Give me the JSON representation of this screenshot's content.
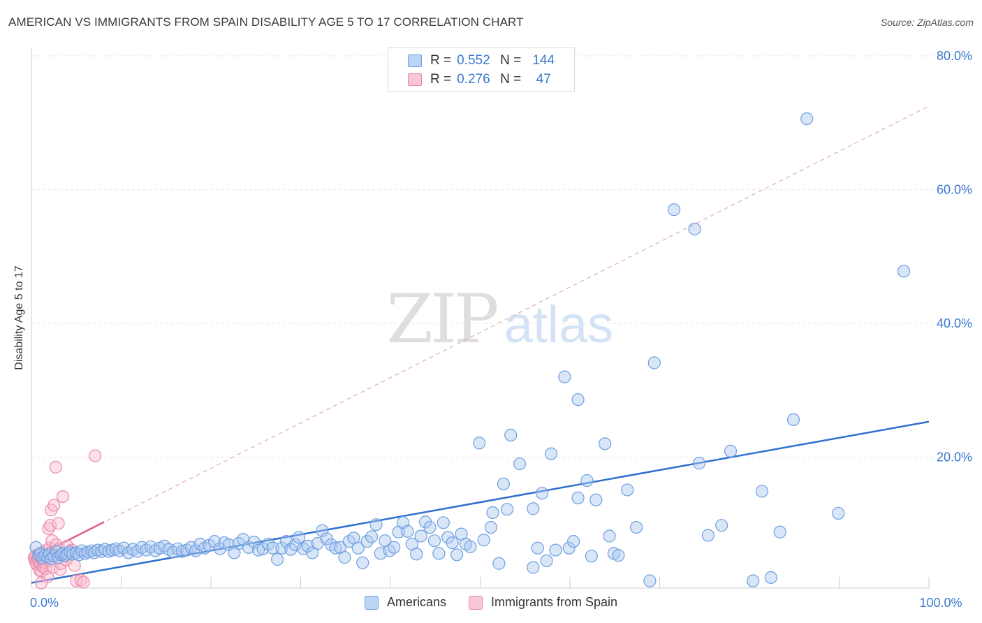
{
  "title": "AMERICAN VS IMMIGRANTS FROM SPAIN DISABILITY AGE 5 TO 17 CORRELATION CHART",
  "source": "Source: ZipAtlas.com",
  "watermark": {
    "zip": "ZIP",
    "atlas": "atlas"
  },
  "legend": [
    {
      "name": "Americans",
      "r_label": "R =",
      "r": "0.552",
      "n_label": "N =",
      "n": "144",
      "fill": "#a9c8f0",
      "stroke": "#6f9fe0"
    },
    {
      "name": "Immigrants from Spain",
      "r_label": "R =",
      "r": "0.276",
      "n_label": "N =",
      "n": "47",
      "fill": "#f8bdd0",
      "stroke": "#ec88a8"
    }
  ],
  "colors": {
    "blue_line": "#2f6fcf",
    "pink_line": "#e0608a",
    "axis_text": "#3b78d0",
    "grid": "#e4e4e4"
  },
  "chart_data": {
    "type": "scatter",
    "title": "AMERICAN VS IMMIGRANTS FROM SPAIN DISABILITY AGE 5 TO 17 CORRELATION CHART",
    "xlabel": "",
    "ylabel": "Disability Age 5 to 17",
    "xlim": [
      0,
      100
    ],
    "ylim": [
      0,
      80
    ],
    "x_tick_labels": [
      {
        "value": 0,
        "label": "0.0%"
      },
      {
        "value": 100,
        "label": "100.0%"
      }
    ],
    "y_tick_labels": [
      {
        "value": 20,
        "label": "20.0%"
      },
      {
        "value": 40,
        "label": "40.0%"
      },
      {
        "value": 60,
        "label": "60.0%"
      },
      {
        "value": 80,
        "label": "80.0%"
      }
    ],
    "x_minor_ticks": [
      10,
      20,
      30,
      40,
      50,
      60,
      70,
      80,
      90,
      100
    ],
    "series": [
      {
        "name": "Americans",
        "r": 0.552,
        "n": 144,
        "trend": {
          "x0": 0,
          "y0": 1.2,
          "x1": 100,
          "y1": 25.3
        },
        "points": [
          [
            0.5,
            6.5
          ],
          [
            0.8,
            5.4
          ],
          [
            1.0,
            5.6
          ],
          [
            1.2,
            4.9
          ],
          [
            1.5,
            5.3
          ],
          [
            1.8,
            5.1
          ],
          [
            2.0,
            5.5
          ],
          [
            2.2,
            4.8
          ],
          [
            2.5,
            5.2
          ],
          [
            2.8,
            5.9
          ],
          [
            3.0,
            5.0
          ],
          [
            3.3,
            5.4
          ],
          [
            3.5,
            5.6
          ],
          [
            3.8,
            5.3
          ],
          [
            4.0,
            5.5
          ],
          [
            4.3,
            5.8
          ],
          [
            4.6,
            5.5
          ],
          [
            5.0,
            5.7
          ],
          [
            5.3,
            5.4
          ],
          [
            5.6,
            6.0
          ],
          [
            6.0,
            5.6
          ],
          [
            6.3,
            5.8
          ],
          [
            6.7,
            6.0
          ],
          [
            7.0,
            5.7
          ],
          [
            7.4,
            6.1
          ],
          [
            7.8,
            5.9
          ],
          [
            8.2,
            6.2
          ],
          [
            8.6,
            5.9
          ],
          [
            9.0,
            6.1
          ],
          [
            9.4,
            6.3
          ],
          [
            9.8,
            6.0
          ],
          [
            10.3,
            6.4
          ],
          [
            10.8,
            5.7
          ],
          [
            11.3,
            6.2
          ],
          [
            11.8,
            5.9
          ],
          [
            12.3,
            6.5
          ],
          [
            12.8,
            6.1
          ],
          [
            13.3,
            6.6
          ],
          [
            13.8,
            6.0
          ],
          [
            14.3,
            6.4
          ],
          [
            14.8,
            6.7
          ],
          [
            15.3,
            6.2
          ],
          [
            15.8,
            5.8
          ],
          [
            16.3,
            6.3
          ],
          [
            16.8,
            5.9
          ],
          [
            17.3,
            6.1
          ],
          [
            17.8,
            6.5
          ],
          [
            18.3,
            6.0
          ],
          [
            18.8,
            7.0
          ],
          [
            19.3,
            6.4
          ],
          [
            19.8,
            6.8
          ],
          [
            20.4,
            7.4
          ],
          [
            21.0,
            6.3
          ],
          [
            21.5,
            7.2
          ],
          [
            22.0,
            6.9
          ],
          [
            22.6,
            5.7
          ],
          [
            23.1,
            7.1
          ],
          [
            23.6,
            7.7
          ],
          [
            24.2,
            6.5
          ],
          [
            24.8,
            7.3
          ],
          [
            25.3,
            6.1
          ],
          [
            25.8,
            6.3
          ],
          [
            26.4,
            7.0
          ],
          [
            26.9,
            6.4
          ],
          [
            27.4,
            4.7
          ],
          [
            27.9,
            6.4
          ],
          [
            28.4,
            7.4
          ],
          [
            28.9,
            6.2
          ],
          [
            29.4,
            6.9
          ],
          [
            29.8,
            8.0
          ],
          [
            30.3,
            6.3
          ],
          [
            30.8,
            6.7
          ],
          [
            31.3,
            5.7
          ],
          [
            31.9,
            7.1
          ],
          [
            32.4,
            9.0
          ],
          [
            32.9,
            7.8
          ],
          [
            33.4,
            6.9
          ],
          [
            33.9,
            6.4
          ],
          [
            34.4,
            6.5
          ],
          [
            34.9,
            5.0
          ],
          [
            35.4,
            7.4
          ],
          [
            35.9,
            7.9
          ],
          [
            36.4,
            6.4
          ],
          [
            36.9,
            4.2
          ],
          [
            37.4,
            7.4
          ],
          [
            37.9,
            8.1
          ],
          [
            38.4,
            9.9
          ],
          [
            38.9,
            5.6
          ],
          [
            39.4,
            7.5
          ],
          [
            39.9,
            6.0
          ],
          [
            40.4,
            6.5
          ],
          [
            40.9,
            8.8
          ],
          [
            41.4,
            10.2
          ],
          [
            41.9,
            8.9
          ],
          [
            42.4,
            7.0
          ],
          [
            42.9,
            5.5
          ],
          [
            43.4,
            8.2
          ],
          [
            43.9,
            10.3
          ],
          [
            44.4,
            9.5
          ],
          [
            44.9,
            7.5
          ],
          [
            45.4,
            5.6
          ],
          [
            45.9,
            10.2
          ],
          [
            46.4,
            8.0
          ],
          [
            46.9,
            7.2
          ],
          [
            47.4,
            5.4
          ],
          [
            47.9,
            8.5
          ],
          [
            48.4,
            7.0
          ],
          [
            48.9,
            6.6
          ],
          [
            49.9,
            22.1
          ],
          [
            50.4,
            7.6
          ],
          [
            51.4,
            11.7
          ],
          [
            52.1,
            4.1
          ],
          [
            52.6,
            16.0
          ],
          [
            53.0,
            12.2
          ],
          [
            53.4,
            23.3
          ],
          [
            54.4,
            19.0
          ],
          [
            55.9,
            3.5
          ],
          [
            56.4,
            6.4
          ],
          [
            56.9,
            14.6
          ],
          [
            57.4,
            4.5
          ],
          [
            58.4,
            6.1
          ],
          [
            59.4,
            32.0
          ],
          [
            59.9,
            6.4
          ],
          [
            60.4,
            7.4
          ],
          [
            60.9,
            13.9
          ],
          [
            61.9,
            16.5
          ],
          [
            62.4,
            5.2
          ],
          [
            62.9,
            13.6
          ],
          [
            63.9,
            22.0
          ],
          [
            64.4,
            8.2
          ],
          [
            64.9,
            5.6
          ],
          [
            65.4,
            5.3
          ],
          [
            66.4,
            15.1
          ],
          [
            67.4,
            9.5
          ],
          [
            68.9,
            1.5
          ],
          [
            69.4,
            34.1
          ],
          [
            73.9,
            54.1
          ],
          [
            74.4,
            19.1
          ],
          [
            75.4,
            8.3
          ],
          [
            76.9,
            9.8
          ],
          [
            77.9,
            20.9
          ],
          [
            80.4,
            1.5
          ],
          [
            81.4,
            14.9
          ],
          [
            82.4,
            2.0
          ],
          [
            83.4,
            8.8
          ],
          [
            84.9,
            25.6
          ],
          [
            86.4,
            70.6
          ],
          [
            89.9,
            11.6
          ],
          [
            97.2,
            47.8
          ],
          [
            55.9,
            12.3
          ],
          [
            51.2,
            9.5
          ],
          [
            60.9,
            28.6
          ],
          [
            57.9,
            20.5
          ],
          [
            71.6,
            57.0
          ]
        ]
      },
      {
        "name": "Immigrants from Spain",
        "r": 0.276,
        "n": 47,
        "trend": {
          "x0": 0,
          "y0": 4.8,
          "x1": 8.1,
          "y1": 10.3
        },
        "trend_extended": {
          "x0": 0,
          "y0": 4.8,
          "x1": 100,
          "y1": 72.5
        },
        "points": [
          [
            0.3,
            5.0
          ],
          [
            0.4,
            4.6
          ],
          [
            0.5,
            4.2
          ],
          [
            0.5,
            5.3
          ],
          [
            0.6,
            3.9
          ],
          [
            0.7,
            4.8
          ],
          [
            0.8,
            5.1
          ],
          [
            0.8,
            4.4
          ],
          [
            0.9,
            3.1
          ],
          [
            1.0,
            5.5
          ],
          [
            1.0,
            4.0
          ],
          [
            1.1,
            2.9
          ],
          [
            1.2,
            4.7
          ],
          [
            1.2,
            5.2
          ],
          [
            1.3,
            3.6
          ],
          [
            1.4,
            5.0
          ],
          [
            1.4,
            4.3
          ],
          [
            1.5,
            6.0
          ],
          [
            1.6,
            3.3
          ],
          [
            1.7,
            5.6
          ],
          [
            1.8,
            2.1
          ],
          [
            1.9,
            9.3
          ],
          [
            2.0,
            6.4
          ],
          [
            2.0,
            4.5
          ],
          [
            2.1,
            9.8
          ],
          [
            2.2,
            12.1
          ],
          [
            2.3,
            7.5
          ],
          [
            2.4,
            3.5
          ],
          [
            2.5,
            12.8
          ],
          [
            2.6,
            5.4
          ],
          [
            2.7,
            18.5
          ],
          [
            2.8,
            6.9
          ],
          [
            3.0,
            10.1
          ],
          [
            3.1,
            6.3
          ],
          [
            3.2,
            3.2
          ],
          [
            3.3,
            4.1
          ],
          [
            3.5,
            14.1
          ],
          [
            3.7,
            5.2
          ],
          [
            3.9,
            4.6
          ],
          [
            4.0,
            6.7
          ],
          [
            4.5,
            6.1
          ],
          [
            4.8,
            3.8
          ],
          [
            5.0,
            1.5
          ],
          [
            5.5,
            1.6
          ],
          [
            5.8,
            1.3
          ],
          [
            7.1,
            20.2
          ],
          [
            1.1,
            1.2
          ]
        ]
      }
    ]
  }
}
